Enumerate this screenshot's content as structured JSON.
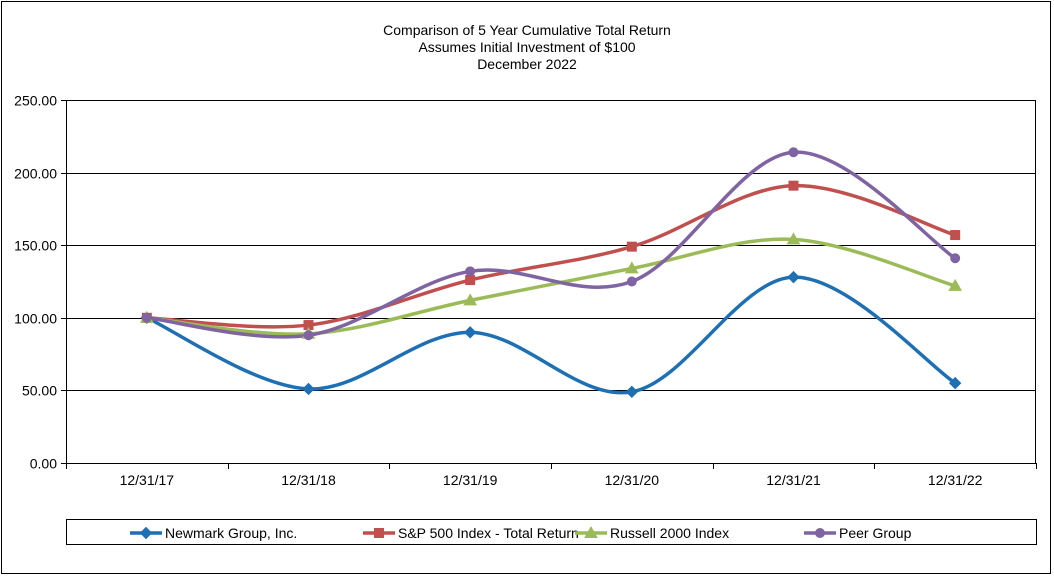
{
  "title_lines": [
    "Comparison of 5 Year Cumulative Total Return",
    "Assumes Initial Investment of $100",
    "December 2022"
  ],
  "chart_data": {
    "type": "line",
    "title": "Comparison of 5 Year Cumulative Total Return",
    "subtitle": "Assumes Initial Investment of $100 / December 2022",
    "categories": [
      "12/31/17",
      "12/31/18",
      "12/31/19",
      "12/31/20",
      "12/31/21",
      "12/31/22"
    ],
    "ylim": [
      0,
      250
    ],
    "yticks": [
      "0.00",
      "50.00",
      "100.00",
      "150.00",
      "200.00",
      "250.00"
    ],
    "grid": true,
    "smooth": true,
    "legend_position": "bottom",
    "series": [
      {
        "name": "Newmark Group, Inc.",
        "color": "#1f6fb3",
        "marker": "diamond",
        "values": [
          100,
          51,
          90,
          49,
          128,
          55
        ]
      },
      {
        "name": "S&P 500 Index - Total Return",
        "color": "#c0504d",
        "marker": "square",
        "values": [
          100,
          95,
          126,
          149,
          191,
          157
        ]
      },
      {
        "name": "Russell 2000 Index",
        "color": "#9bbb59",
        "marker": "triangle",
        "values": [
          100,
          89,
          112,
          134,
          154,
          122
        ]
      },
      {
        "name": "Peer Group",
        "color": "#8064a2",
        "marker": "circle",
        "values": [
          100,
          88,
          132,
          125,
          214,
          141
        ]
      }
    ]
  }
}
